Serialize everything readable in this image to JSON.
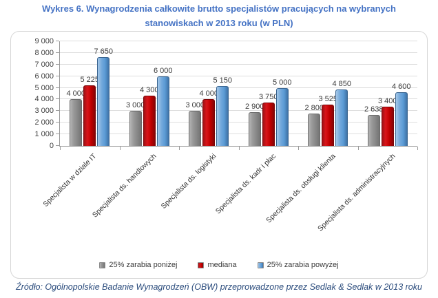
{
  "title": "Wykres 6. Wynagrodzenia całkowite brutto specjalistów pracujących na wybranych stanowiskach w 2013 roku (w PLN)",
  "source": "Źródło: Ogólnopolskie Badanie Wynagrodzeń (OBW) przeprowadzone przez Sedlak & Sedlak w 2013 roku",
  "colors": {
    "title_blue": "#4472C4",
    "source_blue": "#2A4B7C",
    "series_gray": "#8c8c8c",
    "series_red": "#c00000",
    "series_blue": "#5b9bd5",
    "gridline": "#DDDDDD",
    "frame_border": "#D6D6D6"
  },
  "chart_data": {
    "type": "bar",
    "title": "Wykres 6. Wynagrodzenia całkowite brutto specjalistów pracujących na wybranych stanowiskach w 2013 roku (w PLN)",
    "categories": [
      "Specjalista w dziale IT",
      "Specjalista ds. handlowych",
      "Specjalista ds. logistyki",
      "Specjalista ds. kadr i płac",
      "Specjalista ds. obsługi klienta",
      "Specjalista ds. administracyjnych"
    ],
    "series": [
      {
        "name": "25% zarabia poniżej",
        "color": "#8c8c8c",
        "values": [
          4000,
          3000,
          3000,
          2900,
          2800,
          2638
        ],
        "labels": [
          "4 000",
          "3 000",
          "3 000",
          "2 900",
          "2 800",
          "2 638"
        ]
      },
      {
        "name": "mediana",
        "color": "#c00000",
        "values": [
          5225,
          4300,
          4000,
          3750,
          3525,
          3400
        ],
        "labels": [
          "5 225",
          "4 300",
          "4 000",
          "3 750",
          "3 525",
          "3 400"
        ]
      },
      {
        "name": "25% zarabia powyżej",
        "color": "#5b9bd5",
        "values": [
          7650,
          6000,
          5150,
          5000,
          4850,
          4600
        ],
        "labels": [
          "7 650",
          "6 000",
          "5 150",
          "5 000",
          "4 850",
          "4 600"
        ]
      }
    ],
    "xlabel": "",
    "ylabel": "",
    "ylim": [
      0,
      9000
    ],
    "ytick_values": [
      0,
      1000,
      2000,
      3000,
      4000,
      5000,
      6000,
      7000,
      8000,
      9000
    ],
    "ytick_labels": [
      "0",
      "1 000",
      "2 000",
      "3 000",
      "4 000",
      "5 000",
      "6 000",
      "7 000",
      "8 000",
      "9 000"
    ],
    "grid": true,
    "data_labels": "outside-end",
    "legend_position": "bottom"
  }
}
